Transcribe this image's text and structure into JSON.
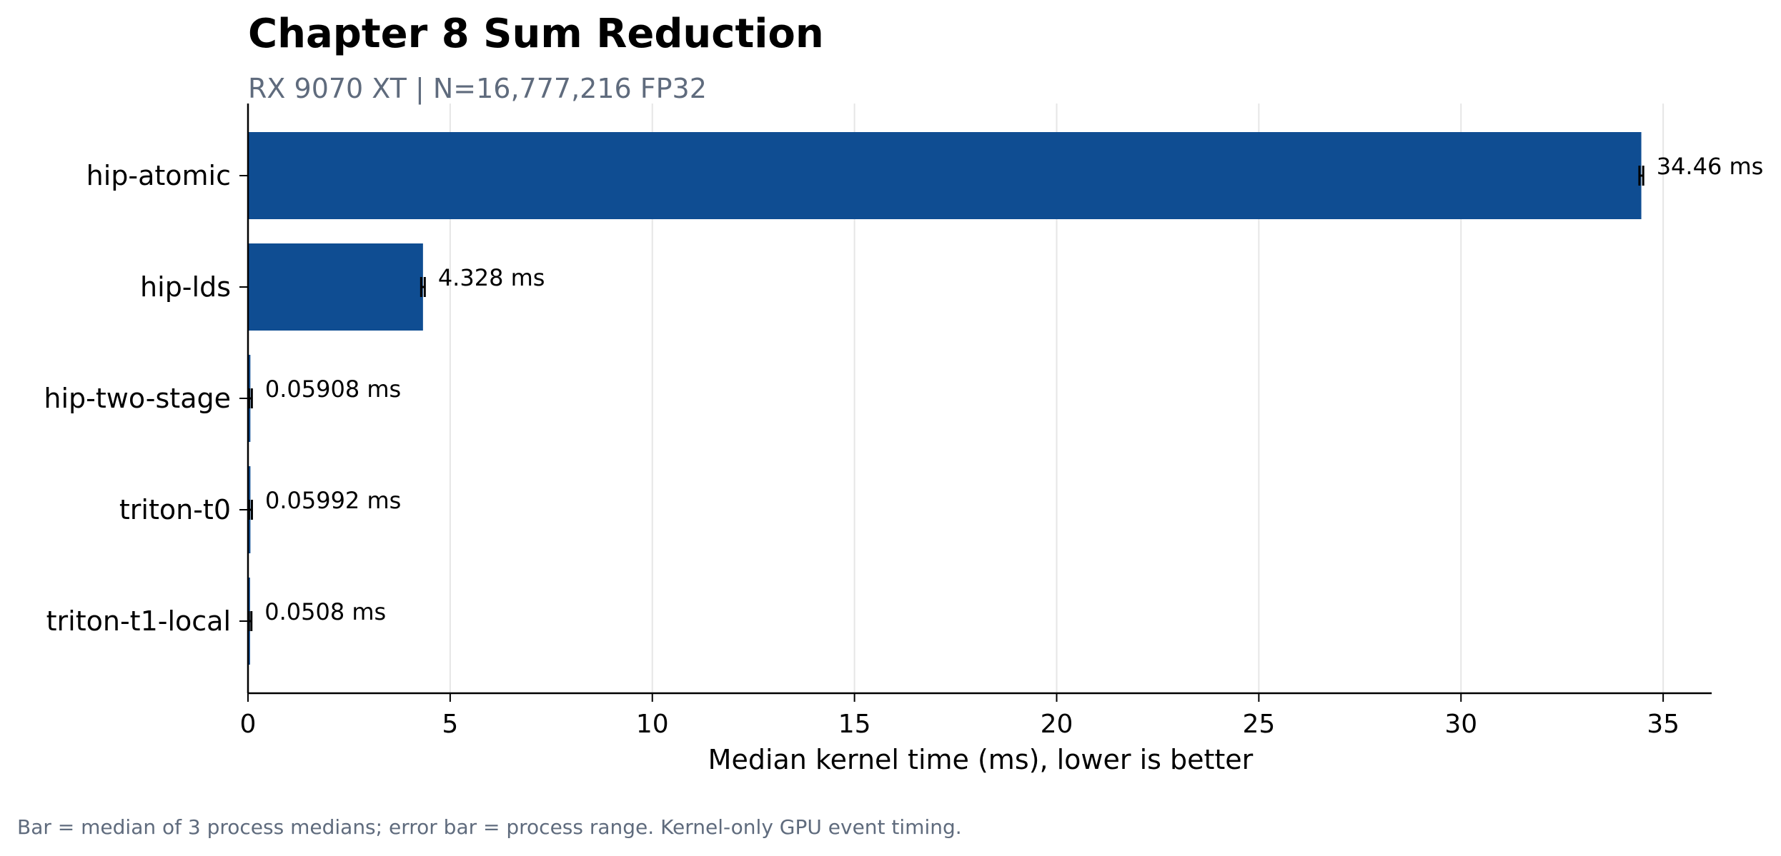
{
  "chart_data": {
    "type": "bar",
    "orientation": "horizontal",
    "title": "Chapter 8 Sum Reduction",
    "subtitle": "RX 9070 XT | N=16,777,216 FP32",
    "xlabel": "Median kernel time (ms), lower is better",
    "ylabel": "",
    "categories": [
      "hip-atomic",
      "hip-lds",
      "hip-two-stage",
      "triton-t0",
      "triton-t1-local"
    ],
    "values": [
      34.46,
      4.328,
      0.05908,
      0.05992,
      0.0508
    ],
    "data_labels": [
      "34.46 ms",
      "4.328 ms",
      "0.05908 ms",
      "0.05992 ms",
      "0.0508 ms"
    ],
    "error_range": [
      [
        34.44,
        34.48
      ],
      [
        4.31,
        4.345
      ],
      [
        0.05,
        0.068
      ],
      [
        0.05,
        0.07
      ],
      [
        0.045,
        0.057
      ]
    ],
    "xlim": [
      0,
      36.2
    ],
    "xticks": [
      0,
      5,
      10,
      15,
      20,
      25,
      30,
      35
    ],
    "grid": "vertical",
    "bar_color": "#0f4d92",
    "footnote": "Bar = median of 3 process medians; error bar = process range. Kernel-only GPU event timing."
  }
}
